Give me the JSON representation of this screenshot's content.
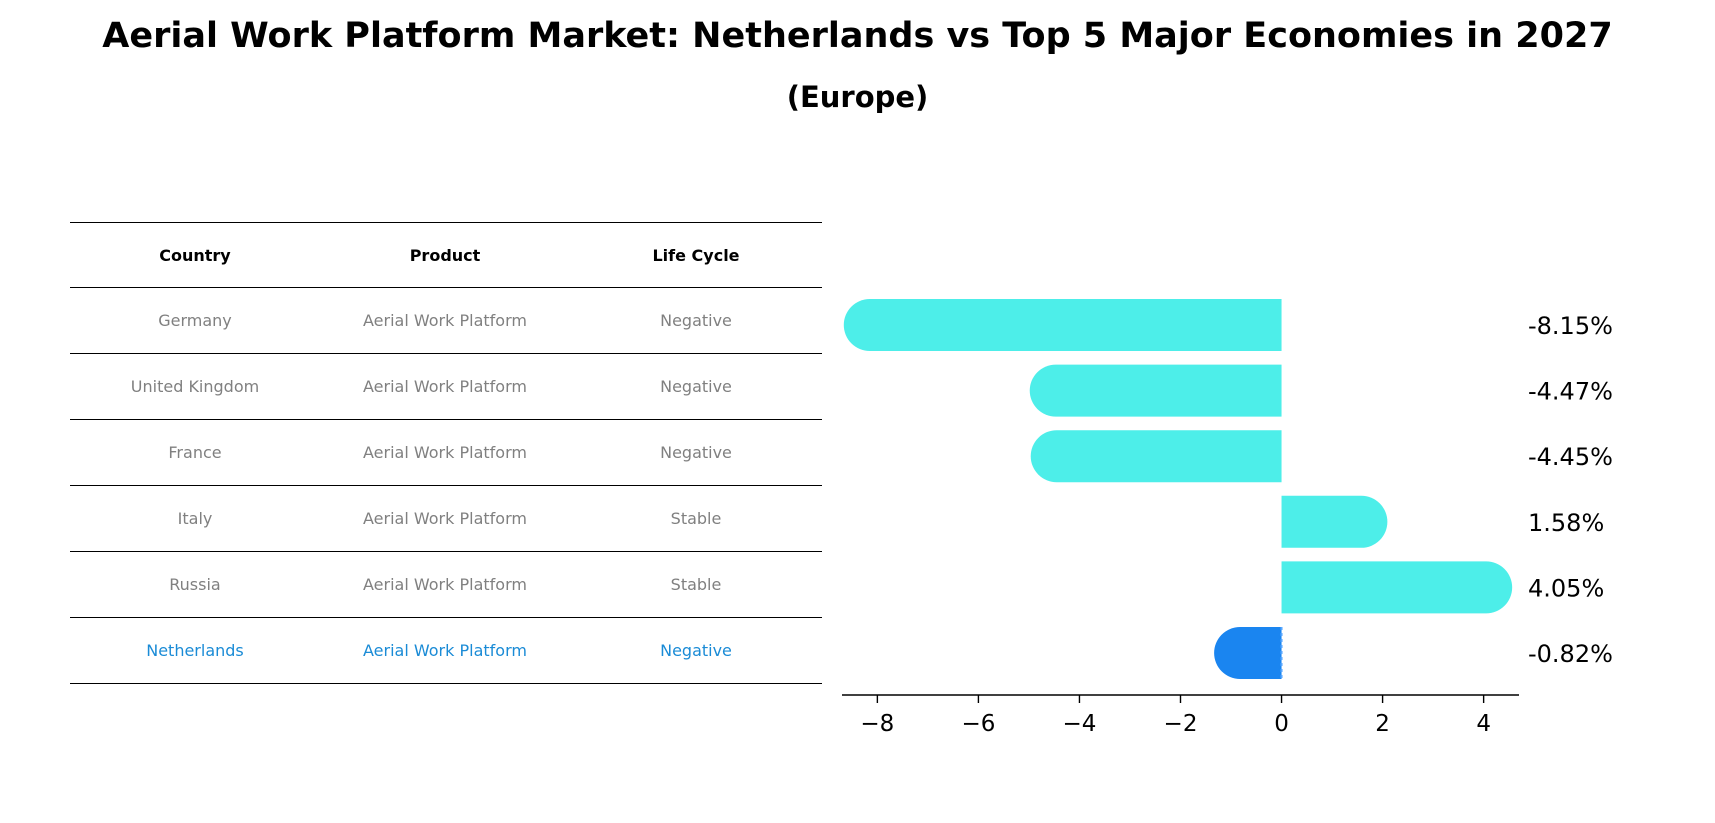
{
  "title": "Aerial Work Platform Market: Netherlands vs Top 5 Major Economies in 2027",
  "subtitle": "(Europe)",
  "table": {
    "headers": [
      "Country",
      "Product",
      "Life Cycle"
    ],
    "rows": [
      {
        "country": "Germany",
        "product": "Aerial Work Platform",
        "life_cycle": "Negative"
      },
      {
        "country": "United Kingdom",
        "product": "Aerial Work Platform",
        "life_cycle": "Negative"
      },
      {
        "country": "France",
        "product": "Aerial Work Platform",
        "life_cycle": "Negative"
      },
      {
        "country": "Italy",
        "product": "Aerial Work Platform",
        "life_cycle": "Stable"
      },
      {
        "country": "Russia",
        "product": "Aerial Work Platform",
        "life_cycle": "Stable"
      },
      {
        "country": "Netherlands",
        "product": "Aerial Work Platform",
        "life_cycle": "Negative"
      }
    ]
  },
  "colors": {
    "bar": "#4deee9",
    "highlight_bar": "#1a85f0",
    "highlight_text": "#1a8bd6",
    "muted_text": "#808080"
  },
  "chart_data": {
    "type": "bar",
    "orientation": "horizontal",
    "categories": [
      "Germany",
      "United Kingdom",
      "France",
      "Italy",
      "Russia",
      "Netherlands"
    ],
    "values": [
      -8.15,
      -4.47,
      -4.45,
      1.58,
      4.05,
      -0.82
    ],
    "value_labels": [
      "-8.15%",
      "-4.47%",
      "-4.45%",
      "1.58%",
      "4.05%",
      "-0.82%"
    ],
    "highlight": "Netherlands",
    "xlim": [
      -8.7,
      4.7
    ],
    "xticks": [
      -8,
      -6,
      -4,
      -2,
      0,
      2,
      4
    ],
    "xtick_labels": [
      "−8",
      "−6",
      "−4",
      "−2",
      "0",
      "2",
      "4"
    ],
    "grid": false
  }
}
